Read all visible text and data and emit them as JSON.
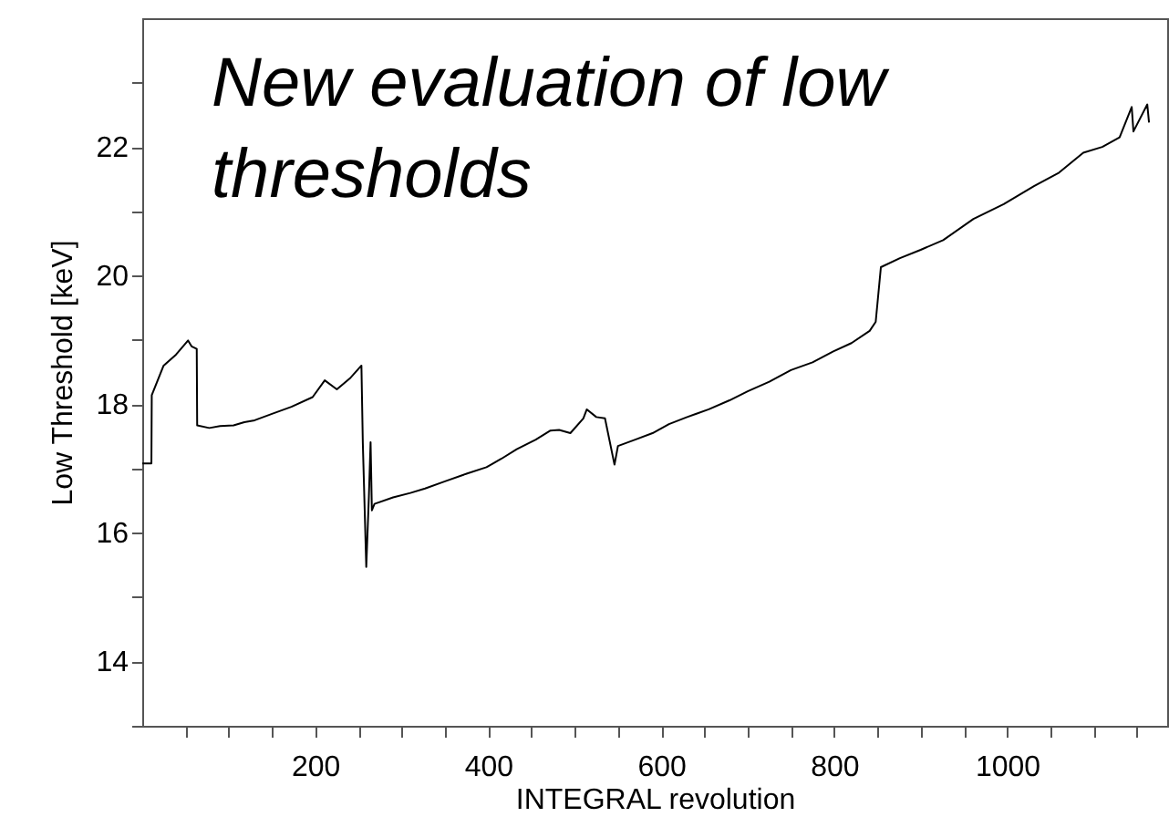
{
  "chart_data": {
    "type": "line",
    "title": "New evaluation of low thresholds",
    "xlabel": "INTEGRAL revolution",
    "ylabel": "Low Threshold [keV]",
    "x": [
      0,
      10.6,
      11,
      24.7,
      39,
      53,
      57,
      63,
      63.5,
      77.5,
      90,
      105.6,
      118,
      130,
      150,
      172.5,
      197,
      211,
      225,
      240,
      253.4,
      255,
      259,
      262,
      264,
      265.5,
      268.5,
      290,
      310,
      327,
      350,
      375,
      398,
      415,
      433,
      455,
      472,
      482,
      495,
      510,
      514,
      525,
      535,
      546,
      550,
      570,
      590,
      609,
      630,
      655,
      679,
      700,
      725,
      750,
      775,
      799,
      820,
      841,
      848,
      854,
      876,
      900,
      926,
      961,
      996,
      1031,
      1060,
      1088,
      1110,
      1130,
      1144,
      1146,
      1162,
      1164
    ],
    "series": [
      {
        "color": "#000000",
        "values": [
          17.08,
          17.08,
          18.14,
          18.6,
          18.77,
          18.99,
          18.9,
          18.86,
          17.67,
          17.63,
          17.66,
          17.67,
          17.72,
          17.75,
          17.85,
          17.96,
          18.11,
          18.37,
          18.23,
          18.4,
          18.6,
          17.41,
          15.47,
          16.55,
          17.41,
          16.35,
          16.45,
          16.55,
          16.62,
          16.69,
          16.8,
          16.92,
          17.02,
          17.15,
          17.3,
          17.45,
          17.59,
          17.6,
          17.55,
          17.78,
          17.92,
          17.8,
          17.78,
          17.06,
          17.35,
          17.45,
          17.55,
          17.69,
          17.8,
          17.92,
          18.06,
          18.2,
          18.35,
          18.53,
          18.65,
          18.82,
          18.95,
          19.14,
          19.28,
          20.13,
          20.27,
          20.4,
          20.55,
          20.88,
          21.11,
          21.39,
          21.6,
          21.91,
          22.0,
          22.15,
          22.62,
          22.24,
          22.66,
          22.38
        ]
      }
    ],
    "xlim": [
      0,
      1185
    ],
    "xticks": [
      {
        "value": 50,
        "label": null
      },
      {
        "value": 100,
        "label": null
      },
      {
        "value": 150,
        "label": null
      },
      200,
      {
        "value": 250,
        "label": null
      },
      {
        "value": 300,
        "label": null
      },
      {
        "value": 350,
        "label": null
      },
      400,
      {
        "value": 450,
        "label": null
      },
      {
        "value": 500,
        "label": null
      },
      {
        "value": 550,
        "label": null
      },
      600,
      {
        "value": 650,
        "label": null
      },
      {
        "value": 700,
        "label": null
      },
      {
        "value": 750,
        "label": null
      },
      800,
      {
        "value": 850,
        "label": null
      },
      {
        "value": 900,
        "label": null
      },
      {
        "value": 950,
        "label": null
      },
      1000,
      {
        "value": 1050,
        "label": null
      },
      {
        "value": 1100,
        "label": null
      },
      {
        "value": 1150,
        "label": null
      }
    ],
    "ylim": [
      13,
      24
    ],
    "yticks": [
      {
        "value": 13,
        "label": null
      },
      14,
      {
        "value": 15,
        "label": null
      },
      16,
      {
        "value": 17,
        "label": null
      },
      18,
      {
        "value": 19,
        "label": null
      },
      20,
      {
        "value": 21,
        "label": null
      },
      22,
      {
        "value": 23,
        "label": null
      }
    ],
    "grid": false,
    "marker": "none",
    "line_style": "solid"
  }
}
